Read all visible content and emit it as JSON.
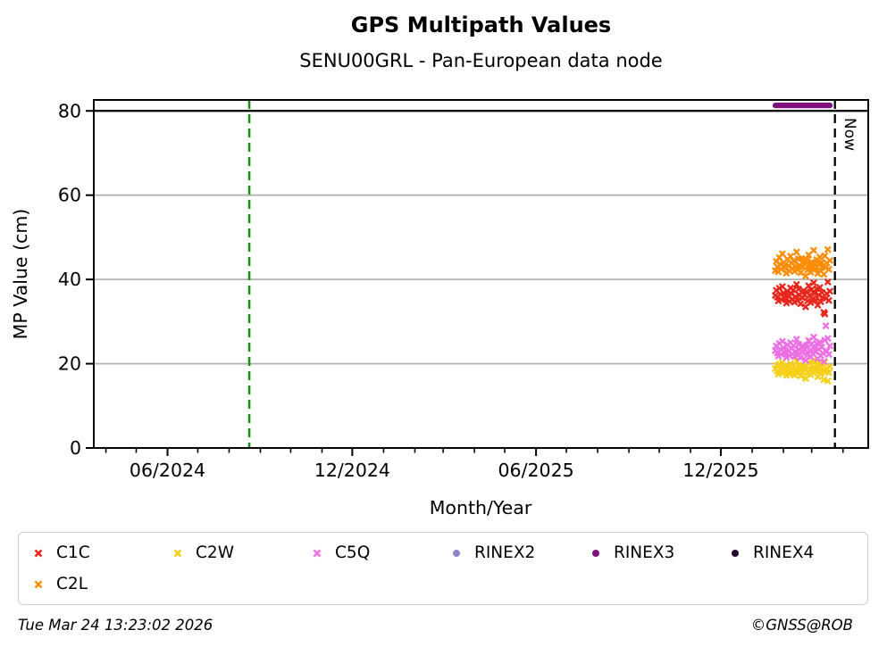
{
  "footer": {
    "timestamp": "Tue Mar 24 13:23:02 2026",
    "copyright": "©GNSS@ROB"
  },
  "chart_data": {
    "type": "scatter",
    "title": "GPS Multipath Values",
    "subtitle": "SENU00GRL - Pan-European data node",
    "xlabel": "Month/Year",
    "ylabel": "MP Value (cm)",
    "ylim": [
      0,
      82.6
    ],
    "y_ticks": [
      0,
      20,
      40,
      60,
      80
    ],
    "grid": "horizontal-gray",
    "grid_color": "#b3b3b3",
    "x_domain_days": {
      "min": 79,
      "max": 846,
      "epoch": "2024-01-01"
    },
    "x_ticks": [
      {
        "day": 152,
        "label": "06/2024"
      },
      {
        "day": 335,
        "label": "12/2024"
      },
      {
        "day": 517,
        "label": "06/2025"
      },
      {
        "day": 700,
        "label": "12/2025"
      }
    ],
    "x_minor_tick_days": [
      91,
      121,
      182,
      213,
      244,
      274,
      305,
      366,
      397,
      425,
      456,
      486,
      547,
      578,
      609,
      639,
      670,
      731,
      762,
      790,
      821
    ],
    "annotations": {
      "campaign_line": {
        "day": 233,
        "color": "#1e8c1e",
        "style": "dashed"
      },
      "now_line": {
        "day": 813,
        "label": "Now",
        "color": "#000000",
        "style": "dashed"
      },
      "threshold_line": {
        "y": 80,
        "color": "#000000"
      }
    },
    "days": [
      754,
      755,
      756,
      757,
      758,
      759,
      760,
      761,
      762,
      763,
      764,
      765,
      766,
      767,
      768,
      769,
      770,
      771,
      772,
      773,
      774,
      775,
      776,
      777,
      778,
      779,
      780,
      781,
      782,
      783,
      784,
      785,
      786,
      787,
      788,
      789,
      790,
      791,
      792,
      793,
      794,
      795,
      796,
      797,
      798,
      799,
      800,
      801,
      802,
      803,
      804,
      805,
      806,
      807,
      808
    ],
    "series": [
      {
        "name": "C1C",
        "color": "#e8261d",
        "marker": "x",
        "values": [
          36.2,
          37.4,
          35.8,
          34.9,
          37.9,
          36.5,
          35.2,
          38.3,
          36.8,
          35.5,
          36.1,
          34.4,
          37.2,
          36.0,
          34.8,
          38.0,
          36.6,
          35.3,
          37.5,
          34.6,
          35.9,
          38.8,
          35.0,
          37.7,
          36.3,
          34.2,
          37.0,
          35.6,
          37.3,
          36.4,
          33.5,
          37.1,
          34.9,
          38.5,
          36.2,
          34.5,
          37.6,
          35.4,
          39.2,
          36.7,
          35.1,
          37.8,
          33.9,
          36.3,
          38.1,
          34.7,
          36.9,
          35.7,
          32.2,
          31.8,
          35.5,
          36.6,
          39.4,
          35.0,
          37.2
        ]
      },
      {
        "name": "C2W",
        "color": "#f6cf17",
        "marker": "x",
        "values": [
          18.8,
          19.6,
          18.2,
          17.5,
          19.9,
          18.9,
          17.9,
          20.3,
          19.2,
          18.0,
          18.6,
          17.2,
          19.5,
          18.4,
          17.6,
          20.0,
          18.9,
          17.8,
          19.4,
          17.3,
          18.3,
          20.6,
          17.7,
          19.7,
          18.7,
          17.1,
          19.2,
          18.1,
          19.3,
          18.8,
          16.5,
          19.5,
          17.8,
          20.2,
          18.5,
          17.4,
          19.6,
          18.0,
          20.8,
          19.0,
          18.2,
          19.8,
          16.9,
          18.6,
          20.1,
          17.6,
          19.1,
          18.3,
          16.2,
          20.4,
          18.1,
          18.9,
          15.9,
          17.9,
          19.3
        ]
      },
      {
        "name": "C5Q",
        "color": "#ec6fe3",
        "marker": "x",
        "values": [
          23.1,
          24.2,
          22.5,
          21.8,
          24.8,
          23.4,
          22.2,
          25.3,
          23.8,
          22.6,
          23.2,
          21.5,
          24.5,
          23.0,
          21.9,
          25.0,
          23.6,
          22.3,
          24.3,
          21.7,
          22.9,
          25.8,
          22.0,
          24.6,
          23.3,
          21.4,
          24.0,
          22.7,
          24.1,
          23.5,
          20.8,
          24.4,
          22.1,
          25.5,
          23.2,
          21.6,
          24.7,
          22.4,
          26.3,
          23.7,
          22.8,
          24.9,
          21.2,
          23.4,
          25.1,
          21.9,
          23.9,
          22.5,
          20.5,
          25.6,
          29.0,
          23.0,
          26.0,
          22.2,
          24.2
        ]
      },
      {
        "name": "RINEX2",
        "color": "#8e85c8",
        "marker": "circle",
        "values": []
      },
      {
        "name": "RINEX3",
        "color": "#7f117e",
        "marker": "circle",
        "values": [
          81.3,
          81.3,
          81.3,
          81.3,
          81.3,
          81.3,
          81.3,
          81.3,
          81.3,
          81.3,
          81.3,
          81.3,
          81.3,
          81.3,
          81.3,
          81.3,
          81.3,
          81.3,
          81.3,
          81.3,
          81.3,
          81.3,
          81.3,
          81.3,
          81.3,
          81.3,
          81.3,
          81.3,
          81.3,
          81.3,
          81.3,
          81.3,
          81.3,
          81.3,
          81.3,
          81.3,
          81.3,
          81.3,
          81.3,
          81.3,
          81.3,
          81.3,
          81.3,
          81.3,
          81.3,
          81.3,
          81.3,
          81.3,
          81.3,
          81.3,
          81.3,
          81.3,
          81.3,
          81.3,
          81.3
        ]
      },
      {
        "name": "RINEX4",
        "color": "#250a2d",
        "marker": "circle",
        "values": []
      },
      {
        "name": "C2L",
        "color": "#fe8c01",
        "marker": "x",
        "values": [
          42.1,
          44.3,
          43.0,
          41.8,
          45.2,
          43.6,
          42.4,
          46.1,
          44.0,
          42.8,
          43.5,
          41.5,
          44.8,
          43.2,
          42.0,
          45.5,
          43.9,
          42.6,
          44.4,
          41.9,
          43.1,
          46.5,
          42.3,
          44.9,
          43.4,
          41.6,
          45.0,
          42.9,
          44.2,
          43.7,
          40.8,
          44.6,
          42.2,
          45.8,
          43.3,
          41.7,
          44.1,
          42.7,
          46.9,
          43.8,
          42.5,
          44.7,
          41.4,
          43.6,
          45.3,
          42.0,
          44.0,
          43.1,
          41.2,
          45.6,
          42.8,
          43.9,
          47.1,
          42.4,
          44.5
        ]
      }
    ],
    "legend": {
      "position": "bottom",
      "columns": 6,
      "order": [
        "C1C",
        "C2W",
        "C5Q",
        "RINEX2",
        "RINEX3",
        "RINEX4",
        "C2L"
      ]
    }
  }
}
